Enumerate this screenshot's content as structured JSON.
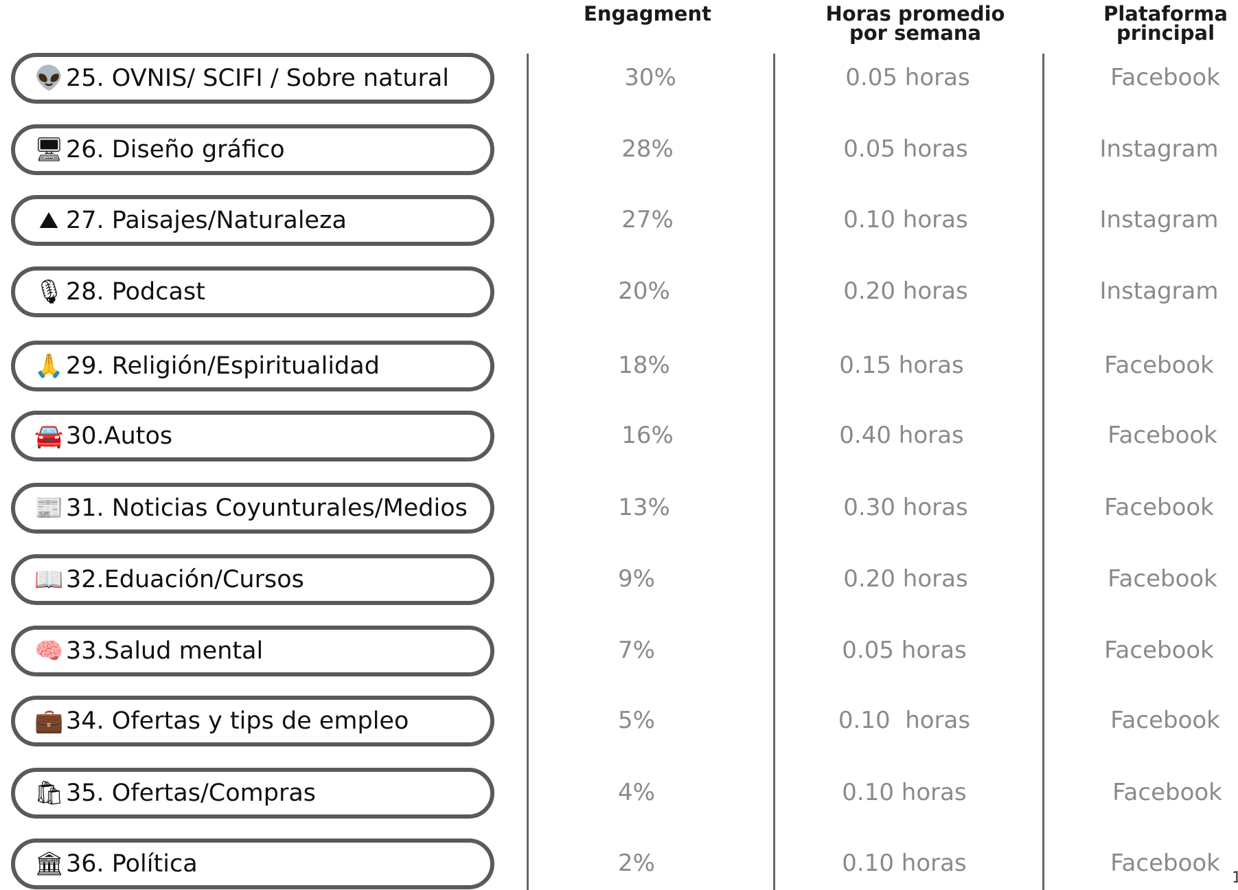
{
  "headers": {
    "engagement": "Engagment",
    "hours": "Horas promedio\npor semana",
    "platform": "Plataforma\nprincipal"
  },
  "rows": [
    {
      "icon": "alien-icon",
      "glyph": "👽",
      "label": "25. OVNIS/ SCIFI / Sobre natural",
      "engagement": "30%",
      "hours": "0.05 horas",
      "platform": "Facebook"
    },
    {
      "icon": "desktop-icon",
      "glyph": "🖥",
      "label": "26. Diseño gráfico",
      "engagement": "28%",
      "hours": "0.05 horas",
      "platform": "Instagram"
    },
    {
      "icon": "mountain-icon",
      "glyph": "⛰",
      "label": "27. Paisajes/Naturaleza",
      "engagement": "27%",
      "hours": "0.10 horas",
      "platform": "Instagram"
    },
    {
      "icon": "microphone-icon",
      "glyph": "🎙",
      "label": "28. Podcast",
      "engagement": "20%",
      "hours": "0.20 horas",
      "platform": "Instagram"
    },
    {
      "icon": "praying-hands-icon",
      "glyph": "🙏",
      "label": "29. Religión/Espiritualidad",
      "engagement": "18%",
      "hours": "0.15 horas",
      "platform": "Facebook"
    },
    {
      "icon": "car-icon",
      "glyph": "🚘",
      "label": "30.Autos",
      "engagement": "16%",
      "hours": "0.40 horas",
      "platform": "Facebook"
    },
    {
      "icon": "newspaper-icon",
      "glyph": "📰",
      "label": "31. Noticias Coyunturales/Medios",
      "engagement": "13%",
      "hours": "0.30 horas",
      "platform": "Facebook"
    },
    {
      "icon": "book-icon",
      "glyph": "📖",
      "label": "32.Eduación/Cursos",
      "engagement": "9%",
      "hours": "0.20 horas",
      "platform": "Facebook"
    },
    {
      "icon": "brain-icon",
      "glyph": "🧠",
      "label": "33.Salud mental",
      "engagement": "7%",
      "hours": "0.05 horas",
      "platform": "Facebook"
    },
    {
      "icon": "briefcase-icon",
      "glyph": "💼",
      "label": "34. Ofertas y tips de empleo",
      "engagement": "5%",
      "hours": "0.10  horas",
      "platform": "Facebook"
    },
    {
      "icon": "shopping-bags-icon",
      "glyph": "🛍",
      "label": "35. Ofertas/Compras",
      "engagement": "4%",
      "hours": "0.10 horas",
      "platform": "Facebook"
    },
    {
      "icon": "classical-building-icon",
      "glyph": "🏛",
      "label": "36. Política",
      "engagement": "2%",
      "hours": "0.10 horas",
      "platform": "Facebook"
    }
  ],
  "page_number": "1"
}
